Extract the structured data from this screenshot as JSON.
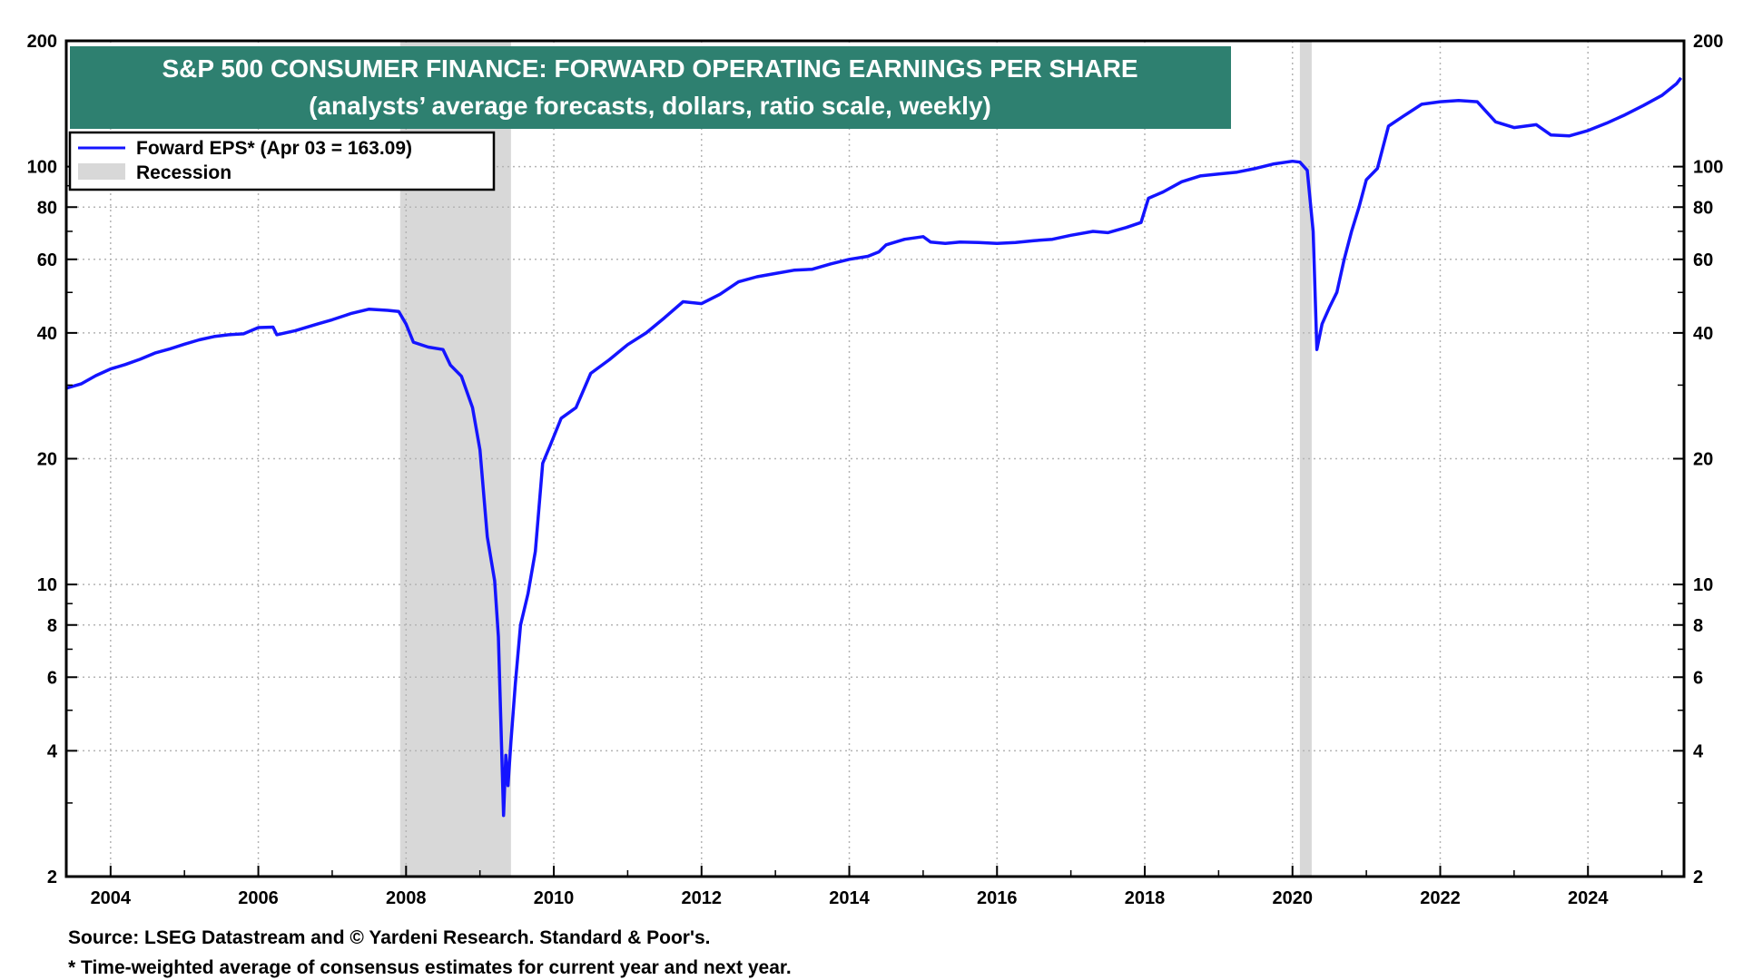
{
  "chart_data": {
    "type": "line",
    "title": "S&P 500 CONSUMER FINANCE: FORWARD OPERATING EARNINGS PER SHARE",
    "subtitle": "(analysts’ average forecasts, dollars, ratio scale, weekly)",
    "y_scale": "log",
    "ylim": [
      2,
      200
    ],
    "xlim": [
      2003.4,
      2025.3
    ],
    "y_ticks": [
      2,
      4,
      6,
      8,
      10,
      20,
      40,
      60,
      80,
      100,
      200
    ],
    "y_minor_ticks": [
      3,
      5,
      7,
      9,
      30,
      50,
      70,
      90
    ],
    "x_ticks": [
      2004,
      2006,
      2008,
      2010,
      2012,
      2014,
      2016,
      2018,
      2020,
      2022,
      2024
    ],
    "grid": true,
    "legend_placement": "top-left",
    "legend": [
      {
        "label": "Foward EPS* (Apr 03 = 163.09)",
        "kind": "line"
      },
      {
        "label": "Recession",
        "kind": "band"
      }
    ],
    "recessions": [
      {
        "start": 2007.92,
        "end": 2009.42
      },
      {
        "start": 2020.1,
        "end": 2020.26
      }
    ],
    "series": [
      {
        "name": "Foward EPS*",
        "color": "#1414ff",
        "points": [
          [
            2003.4,
            29.5
          ],
          [
            2003.6,
            30.2
          ],
          [
            2003.8,
            31.6
          ],
          [
            2004.0,
            32.8
          ],
          [
            2004.2,
            33.6
          ],
          [
            2004.4,
            34.6
          ],
          [
            2004.6,
            35.8
          ],
          [
            2004.8,
            36.6
          ],
          [
            2005.0,
            37.6
          ],
          [
            2005.2,
            38.5
          ],
          [
            2005.4,
            39.2
          ],
          [
            2005.6,
            39.6
          ],
          [
            2005.8,
            39.8
          ],
          [
            2006.0,
            41.2
          ],
          [
            2006.2,
            41.3
          ],
          [
            2006.25,
            39.6
          ],
          [
            2006.5,
            40.5
          ],
          [
            2006.8,
            42.0
          ],
          [
            2007.0,
            43.0
          ],
          [
            2007.25,
            44.5
          ],
          [
            2007.5,
            45.6
          ],
          [
            2007.75,
            45.3
          ],
          [
            2007.9,
            45.0
          ],
          [
            2008.0,
            42.0
          ],
          [
            2008.1,
            38.0
          ],
          [
            2008.3,
            37.0
          ],
          [
            2008.5,
            36.5
          ],
          [
            2008.6,
            33.5
          ],
          [
            2008.75,
            31.5
          ],
          [
            2008.9,
            26.5
          ],
          [
            2009.0,
            21.0
          ],
          [
            2009.1,
            13.0
          ],
          [
            2009.2,
            10.2
          ],
          [
            2009.25,
            7.5
          ],
          [
            2009.32,
            2.8
          ],
          [
            2009.35,
            3.9
          ],
          [
            2009.38,
            3.3
          ],
          [
            2009.42,
            4.2
          ],
          [
            2009.48,
            5.8
          ],
          [
            2009.55,
            8.0
          ],
          [
            2009.65,
            9.5
          ],
          [
            2009.75,
            12.0
          ],
          [
            2009.85,
            19.5
          ],
          [
            2009.95,
            21.5
          ],
          [
            2010.1,
            25.0
          ],
          [
            2010.3,
            26.5
          ],
          [
            2010.5,
            32.0
          ],
          [
            2010.75,
            34.5
          ],
          [
            2011.0,
            37.5
          ],
          [
            2011.25,
            40.0
          ],
          [
            2011.5,
            43.5
          ],
          [
            2011.75,
            47.5
          ],
          [
            2012.0,
            47.0
          ],
          [
            2012.25,
            49.5
          ],
          [
            2012.5,
            53.0
          ],
          [
            2012.75,
            54.5
          ],
          [
            2013.0,
            55.5
          ],
          [
            2013.25,
            56.5
          ],
          [
            2013.5,
            56.8
          ],
          [
            2013.75,
            58.5
          ],
          [
            2014.0,
            60.0
          ],
          [
            2014.25,
            61.0
          ],
          [
            2014.4,
            62.5
          ],
          [
            2014.5,
            65.0
          ],
          [
            2014.75,
            67.0
          ],
          [
            2015.0,
            68.0
          ],
          [
            2015.1,
            66.0
          ],
          [
            2015.3,
            65.5
          ],
          [
            2015.5,
            66.0
          ],
          [
            2015.75,
            65.8
          ],
          [
            2016.0,
            65.5
          ],
          [
            2016.25,
            65.8
          ],
          [
            2016.5,
            66.5
          ],
          [
            2016.75,
            67.0
          ],
          [
            2017.0,
            68.5
          ],
          [
            2017.3,
            70.0
          ],
          [
            2017.5,
            69.5
          ],
          [
            2017.75,
            71.5
          ],
          [
            2017.95,
            73.5
          ],
          [
            2018.05,
            84.0
          ],
          [
            2018.25,
            87.0
          ],
          [
            2018.5,
            92.0
          ],
          [
            2018.75,
            95.0
          ],
          [
            2019.0,
            96.0
          ],
          [
            2019.25,
            97.0
          ],
          [
            2019.5,
            99.0
          ],
          [
            2019.75,
            101.5
          ],
          [
            2020.0,
            103.0
          ],
          [
            2020.1,
            102.5
          ],
          [
            2020.2,
            98.0
          ],
          [
            2020.28,
            70.0
          ],
          [
            2020.33,
            36.5
          ],
          [
            2020.4,
            42.0
          ],
          [
            2020.5,
            46.0
          ],
          [
            2020.6,
            50.0
          ],
          [
            2020.7,
            60.0
          ],
          [
            2020.8,
            70.0
          ],
          [
            2020.9,
            80.0
          ],
          [
            2021.0,
            93.0
          ],
          [
            2021.15,
            99.0
          ],
          [
            2021.3,
            125.0
          ],
          [
            2021.5,
            132.0
          ],
          [
            2021.75,
            141.0
          ],
          [
            2022.0,
            143.0
          ],
          [
            2022.25,
            144.0
          ],
          [
            2022.5,
            143.0
          ],
          [
            2022.75,
            128.0
          ],
          [
            2023.0,
            124.0
          ],
          [
            2023.3,
            126.0
          ],
          [
            2023.5,
            119.0
          ],
          [
            2023.75,
            118.5
          ],
          [
            2024.0,
            122.0
          ],
          [
            2024.25,
            127.0
          ],
          [
            2024.5,
            133.0
          ],
          [
            2024.75,
            140.0
          ],
          [
            2025.0,
            148.0
          ],
          [
            2025.2,
            158.0
          ],
          [
            2025.26,
            163.09
          ]
        ]
      }
    ]
  },
  "footer": {
    "source": "Source: LSEG Datastream and © Yardeni Research. Standard & Poor's.",
    "note": "* Time-weighted average of consensus estimates for current year and next year."
  }
}
